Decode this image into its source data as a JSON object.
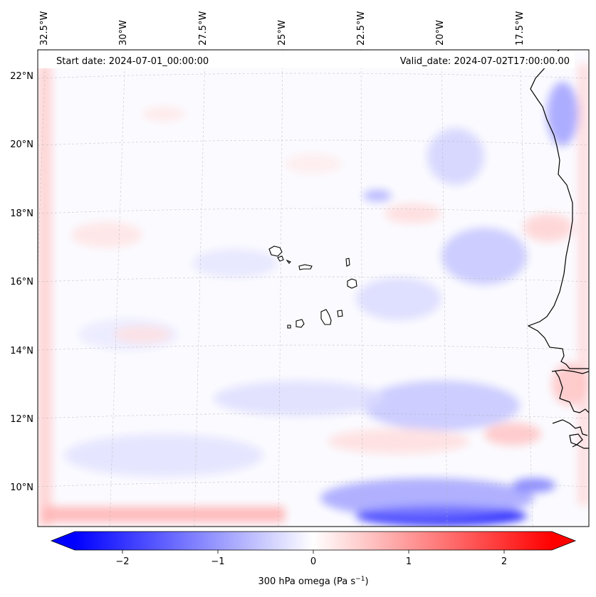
{
  "map": {
    "start_date": "Start date: 2024-07-01_00:00:00",
    "valid_date": "Valid_date: 2024-07-02T17:00:00.00",
    "lon_labels": [
      "32.5°W",
      "30°W",
      "27.5°W",
      "25°W",
      "22.5°W",
      "20°W",
      "17.5°W"
    ],
    "lat_labels": [
      "22°N",
      "20°N",
      "18°N",
      "16°N",
      "14°N",
      "12°N",
      "10°N"
    ],
    "field_variable": "300 hPa omega",
    "colormap": "bwr",
    "colors": {
      "negative": "#0000ff",
      "zero": "#ffffff",
      "positive": "#ff0000",
      "coastline": "#000000"
    }
  },
  "colorbar": {
    "label": "300 hPa omega (Pa s",
    "label_exp": "−1",
    "label_close": ")",
    "range": [
      -2.5,
      2.5
    ],
    "ticks": [
      {
        "value": -2,
        "label": "−2"
      },
      {
        "value": -1,
        "label": "−1"
      },
      {
        "value": 0,
        "label": "0"
      },
      {
        "value": 1,
        "label": "1"
      },
      {
        "value": 2,
        "label": "2"
      }
    ],
    "extend": "both"
  }
}
